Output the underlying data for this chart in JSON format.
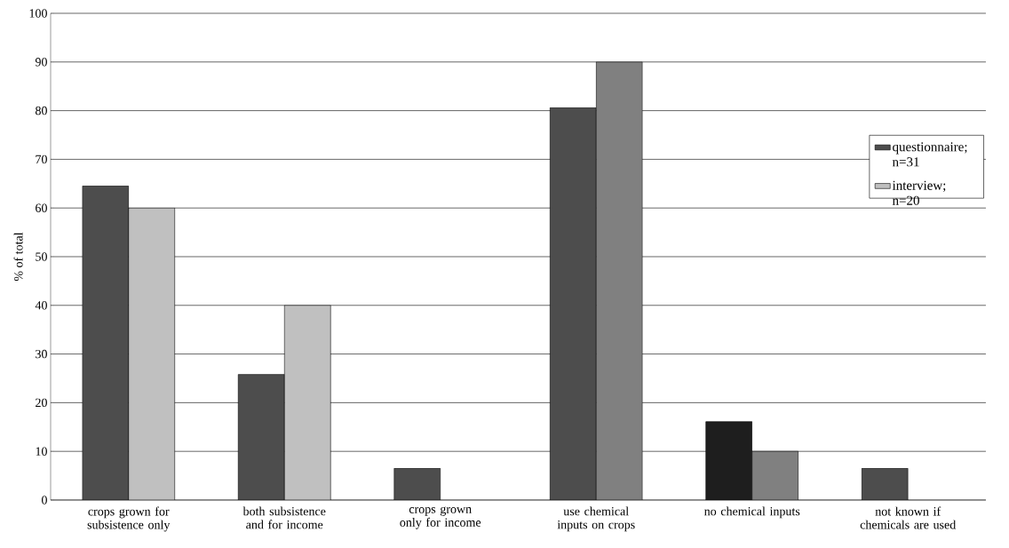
{
  "chart_data": {
    "type": "bar",
    "ylabel": "% of total",
    "categories": [
      "crops grown for subsistence only",
      "both subsistence and for income",
      "crops grown only for income",
      "use chemical inputs on crops",
      "no chemical inputs",
      "not known if chemicals are used"
    ],
    "series": [
      {
        "name": "questionnaire; n=31",
        "color": "#4d4d4d",
        "colors": [
          "#4d4d4d",
          "#4d4d4d",
          "#4d4d4d",
          "#4d4d4d",
          "#1e1e1e",
          "#4d4d4d"
        ],
        "values": [
          64.5,
          25.8,
          6.5,
          80.6,
          16.1,
          6.5
        ]
      },
      {
        "name": "interview; n=20",
        "color": "#c0c0c0",
        "colors": [
          "#c0c0c0",
          "#c0c0c0",
          "#c0c0c0",
          "#808080",
          "#808080",
          "#808080"
        ],
        "values": [
          60,
          40,
          null,
          90,
          10,
          null
        ]
      }
    ],
    "ylim": [
      0,
      100
    ],
    "yticks": [
      0,
      10,
      20,
      30,
      40,
      50,
      60,
      70,
      80,
      90,
      100
    ],
    "grid": "y",
    "legend": "right"
  }
}
